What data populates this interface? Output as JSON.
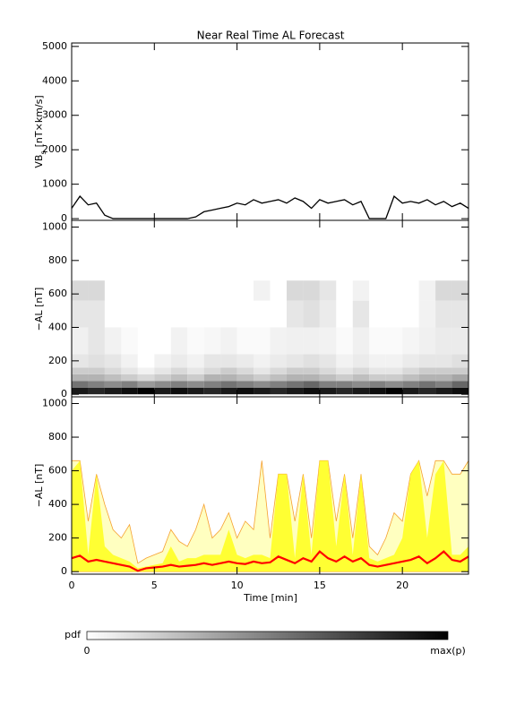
{
  "chart_data": [
    {
      "type": "line",
      "title": "Near Real Time AL Forecast",
      "ylabel": "VB",
      "ylabel_sub": "s",
      "ylabel_unit": "[nT×km/s]",
      "xlim": [
        0,
        24
      ],
      "ylim": [
        -50,
        5100
      ],
      "yticks": [
        0,
        1000,
        2000,
        3000,
        4000,
        5000
      ],
      "color": "#000000",
      "x": [
        0,
        0.5,
        1,
        1.5,
        2,
        2.5,
        3,
        3.5,
        4,
        4.5,
        5,
        5.5,
        6,
        6.5,
        7,
        7.5,
        8,
        8.5,
        9,
        9.5,
        10,
        10.5,
        11,
        11.5,
        12,
        12.5,
        13,
        13.5,
        14,
        14.5,
        15,
        15.5,
        16,
        16.5,
        17,
        17.5,
        18,
        18.5,
        19,
        19.5,
        20,
        20.5,
        21,
        21.5,
        22,
        22.5,
        23,
        23.5,
        24
      ],
      "values": [
        300,
        650,
        400,
        450,
        100,
        0,
        0,
        0,
        0,
        0,
        0,
        0,
        0,
        0,
        0,
        50,
        200,
        250,
        300,
        350,
        450,
        400,
        550,
        450,
        500,
        550,
        450,
        600,
        500,
        300,
        550,
        450,
        500,
        550,
        400,
        500,
        0,
        0,
        0,
        650,
        450,
        500,
        450,
        550,
        400,
        500,
        350,
        450,
        300
      ]
    },
    {
      "type": "heatmap",
      "ylabel": "−AL [nT]",
      "xlim": [
        0,
        24
      ],
      "ylim": [
        -15,
        1040
      ],
      "yticks": [
        0,
        200,
        400,
        600,
        800,
        1000
      ],
      "x_edges": [
        0,
        1,
        2,
        3,
        4,
        5,
        6,
        7,
        8,
        9,
        10,
        11,
        12,
        13,
        14,
        15,
        16,
        17,
        18,
        19,
        20,
        21,
        22,
        23,
        24
      ],
      "y_edges": [
        0,
        40,
        80,
        120,
        160,
        240,
        400,
        560,
        680
      ],
      "z": [
        [
          0.9,
          0.85,
          0.9,
          0.95,
          1,
          0.9,
          0.95,
          0.9,
          0.85,
          0.9,
          0.95,
          0.9,
          0.85,
          0.9,
          0.95,
          0.9,
          0.85,
          0.9,
          0.95,
          1,
          0.9,
          0.85,
          0.9,
          0.95
        ],
        [
          0.55,
          0.5,
          0.45,
          0.5,
          0.4,
          0.45,
          0.5,
          0.45,
          0.5,
          0.55,
          0.5,
          0.45,
          0.5,
          0.55,
          0.6,
          0.5,
          0.5,
          0.45,
          0.5,
          0.45,
          0.5,
          0.55,
          0.5,
          0.6
        ],
        [
          0.3,
          0.3,
          0.25,
          0.2,
          0.15,
          0.2,
          0.25,
          0.2,
          0.3,
          0.3,
          0.25,
          0.2,
          0.25,
          0.3,
          0.3,
          0.25,
          0.2,
          0.25,
          0.2,
          0.2,
          0.25,
          0.3,
          0.3,
          0.35
        ],
        [
          0.2,
          0.2,
          0.15,
          0.1,
          0.05,
          0.1,
          0.15,
          0.1,
          0.15,
          0.2,
          0.15,
          0.1,
          0.15,
          0.2,
          0.2,
          0.15,
          0.1,
          0.15,
          0.1,
          0.1,
          0.15,
          0.2,
          0.2,
          0.2
        ],
        [
          0.1,
          0.12,
          0.1,
          0.05,
          0,
          0.05,
          0.08,
          0.05,
          0.1,
          0.1,
          0.08,
          0.05,
          0.08,
          0.1,
          0.12,
          0.1,
          0.05,
          0.08,
          0.05,
          0.05,
          0.08,
          0.1,
          0.1,
          0.12
        ],
        [
          0.06,
          0.1,
          0.05,
          0.02,
          0,
          0,
          0.05,
          0.02,
          0.03,
          0.05,
          0.02,
          0.02,
          0.05,
          0.06,
          0.06,
          0.05,
          0.02,
          0.06,
          0.02,
          0.02,
          0.04,
          0.06,
          0.08,
          0.08
        ],
        [
          0.1,
          0.1,
          0,
          0,
          0,
          0,
          0,
          0,
          0,
          0,
          0,
          0,
          0,
          0.1,
          0.12,
          0.08,
          0,
          0.1,
          0,
          0,
          0,
          0.05,
          0.1,
          0.1
        ],
        [
          0.15,
          0.15,
          0,
          0,
          0,
          0,
          0,
          0,
          0,
          0,
          0,
          0.05,
          0,
          0.15,
          0.15,
          0.1,
          0,
          0.05,
          0,
          0,
          0,
          0.05,
          0.15,
          0.15
        ]
      ],
      "colorbar": {
        "label": "pdf",
        "min_label": "0",
        "max_label": "max(p)"
      }
    },
    {
      "type": "area",
      "ylabel": "−AL [nT]",
      "xlabel": "Time [min]",
      "xlim": [
        0,
        24
      ],
      "xticks": [
        0,
        5,
        10,
        15,
        20
      ],
      "ylim": [
        -15,
        1040
      ],
      "yticks": [
        0,
        200,
        400,
        600,
        800,
        1000
      ],
      "x": [
        0,
        0.5,
        1,
        1.5,
        2,
        2.5,
        3,
        3.5,
        4,
        4.5,
        5,
        5.5,
        6,
        6.5,
        7,
        7.5,
        8,
        8.5,
        9,
        9.5,
        10,
        10.5,
        11,
        11.5,
        12,
        12.5,
        13,
        13.5,
        14,
        14.5,
        15,
        15.5,
        16,
        16.5,
        17,
        17.5,
        18,
        18.5,
        19,
        19.5,
        20,
        20.5,
        21,
        21.5,
        22,
        22.5,
        23,
        23.5,
        24
      ],
      "series": [
        {
          "color": "#ffffc0",
          "stroke": "#f5a030",
          "values": [
            660,
            660,
            300,
            580,
            400,
            250,
            200,
            280,
            50,
            80,
            100,
            120,
            250,
            180,
            150,
            250,
            400,
            200,
            250,
            350,
            200,
            300,
            250,
            660,
            200,
            580,
            580,
            300,
            580,
            200,
            660,
            660,
            300,
            580,
            200,
            580,
            150,
            100,
            200,
            350,
            300,
            580,
            660,
            450,
            660,
            660,
            580,
            580,
            660
          ]
        },
        {
          "color": "#ffff33",
          "values": [
            600,
            660,
            100,
            580,
            150,
            100,
            80,
            60,
            20,
            30,
            40,
            50,
            150,
            60,
            80,
            80,
            100,
            100,
            100,
            250,
            100,
            80,
            100,
            100,
            80,
            580,
            580,
            80,
            580,
            100,
            660,
            660,
            150,
            580,
            100,
            580,
            80,
            60,
            80,
            100,
            200,
            580,
            660,
            200,
            580,
            660,
            100,
            100,
            150
          ]
        },
        {
          "type": "line",
          "color": "#ff0000",
          "values": [
            80,
            95,
            60,
            70,
            60,
            50,
            40,
            30,
            5,
            20,
            25,
            30,
            40,
            30,
            35,
            40,
            50,
            40,
            50,
            60,
            50,
            45,
            60,
            50,
            55,
            90,
            70,
            50,
            80,
            60,
            120,
            80,
            60,
            90,
            60,
            80,
            40,
            30,
            40,
            50,
            60,
            70,
            90,
            50,
            80,
            120,
            70,
            60,
            90
          ]
        }
      ]
    }
  ]
}
